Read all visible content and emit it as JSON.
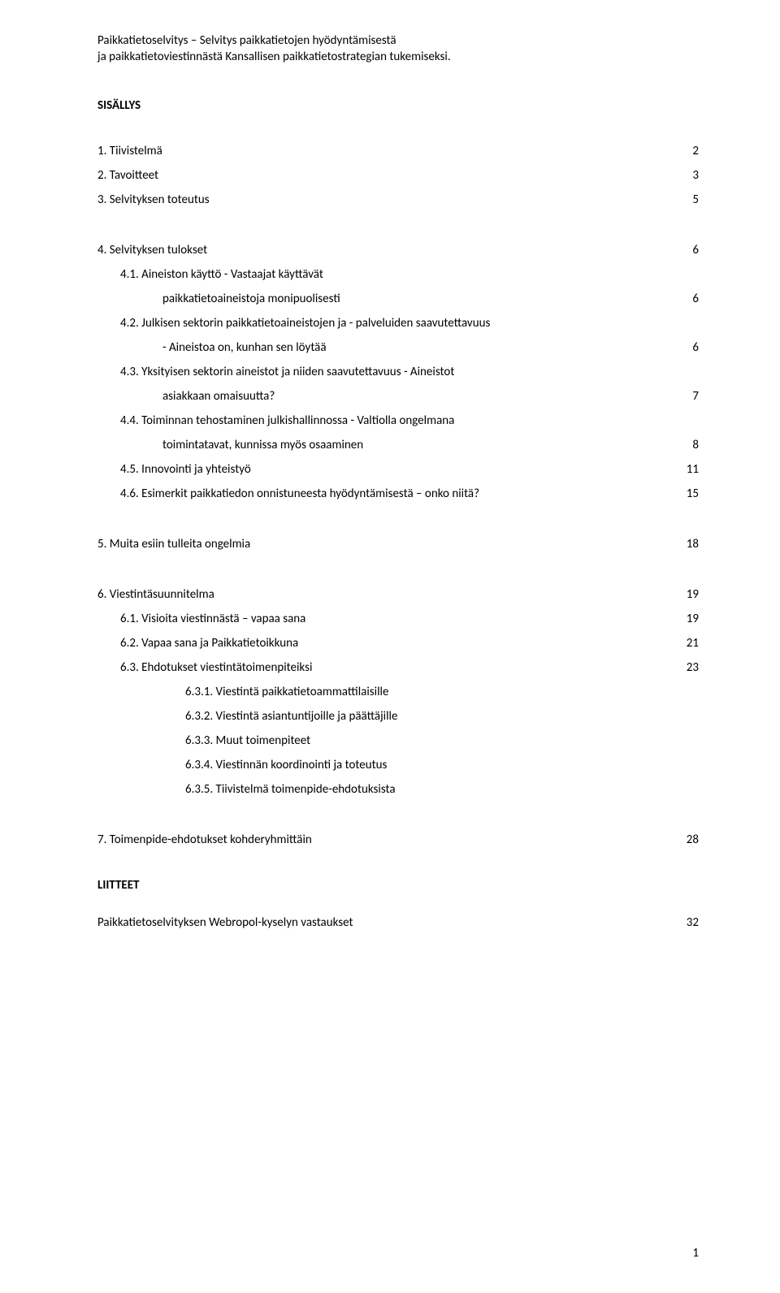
{
  "header": {
    "line1": "Paikkatietoselvitys – Selvitys paikkatietojen hyödyntämisestä",
    "line2": "ja paikkatietoviestinnästä Kansallisen paikkatietostrategian tukemiseksi."
  },
  "sectionTitle": "SISÄLLYS",
  "blocks": [
    {
      "rows": [
        {
          "label": "1.   Tiivistelmä",
          "page": "2",
          "indent": 0
        },
        {
          "label": "2.   Tavoitteet",
          "page": "3",
          "indent": 0
        },
        {
          "label": "3.   Selvityksen toteutus",
          "page": "5",
          "indent": 0
        }
      ]
    },
    {
      "rows": [
        {
          "label": "4.   Selvityksen tulokset",
          "page": "6",
          "indent": 0
        },
        {
          "label": "4.1. Aineiston käyttö - Vastaajat käyttävät",
          "page": "",
          "indent": 1
        },
        {
          "label": "paikkatietoaineistoja monipuolisesti",
          "page": "6",
          "indent": 2
        },
        {
          "label": "4.2. Julkisen sektorin paikkatietoaineistojen ja - palveluiden saavutettavuus",
          "page": "",
          "indent": 1
        },
        {
          "label": "- Aineistoa on, kunhan sen löytää",
          "page": "6",
          "indent": 2
        },
        {
          "label": "4.3. Yksityisen sektorin aineistot ja niiden saavutettavuus - Aineistot",
          "page": "",
          "indent": 1
        },
        {
          "label": "asiakkaan omaisuutta?",
          "page": "7",
          "indent": 2
        },
        {
          "label": "4.4. Toiminnan tehostaminen julkishallinnossa -  Valtiolla ongelmana",
          "page": "",
          "indent": 1
        },
        {
          "label": "toimintatavat, kunnissa myös osaaminen",
          "page": "8",
          "indent": 2
        },
        {
          "label": "4.5. Innovointi ja yhteistyö",
          "page": "11",
          "indent": 1
        },
        {
          "label": "4.6. Esimerkit paikkatiedon onnistuneesta hyödyntämisestä – onko niitä?",
          "page": "15",
          "indent": 1
        }
      ]
    },
    {
      "rows": [
        {
          "label": "5.   Muita esiin tulleita ongelmia",
          "page": "18",
          "indent": 0
        }
      ]
    },
    {
      "rows": [
        {
          "label": "6.   Viestintäsuunnitelma",
          "page": "19",
          "indent": 0
        },
        {
          "label": "6.1. Visioita viestinnästä – vapaa sana",
          "page": "19",
          "indent": 1
        },
        {
          "label": "6.2. Vapaa sana ja Paikkatietoikkuna",
          "page": "21",
          "indent": 1
        },
        {
          "label": "6.3. Ehdotukset viestintätoimenpiteiksi",
          "page": "23",
          "indent": 1
        },
        {
          "label": "6.3.1. Viestintä paikkatietoammattilaisille",
          "page": "",
          "indent": 3
        },
        {
          "label": "6.3.2. Viestintä asiantuntijoille ja päättäjille",
          "page": "",
          "indent": 3
        },
        {
          "label": "6.3.3. Muut toimenpiteet",
          "page": "",
          "indent": 3
        },
        {
          "label": "6.3.4. Viestinnän koordinointi ja toteutus",
          "page": "",
          "indent": 3
        },
        {
          "label": "6.3.5. Tiivistelmä toimenpide-ehdotuksista",
          "page": "",
          "indent": 3
        }
      ]
    },
    {
      "rows": [
        {
          "label": "7.   Toimenpide-ehdotukset kohderyhmittäin",
          "page": "28",
          "indent": 0
        }
      ]
    }
  ],
  "liitteet": {
    "title": "LIITTEET",
    "row": {
      "label": "Paikkatietoselvityksen Webropol-kyselyn vastaukset",
      "page": "32"
    }
  },
  "pageNumber": "1",
  "styling": {
    "background_color": "#ffffff",
    "text_color": "#000000",
    "base_fontsize": 15,
    "line_height": 2.0,
    "title_weight": "bold"
  }
}
